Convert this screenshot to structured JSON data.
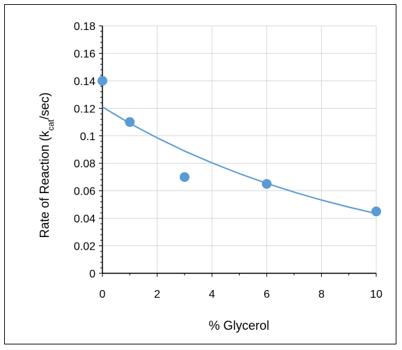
{
  "chart_data": {
    "type": "scatter",
    "title": "",
    "xlabel": "% Glycerol",
    "ylabel": {
      "prefix": "Rate of Reaction (k",
      "subscript": "cat",
      "suffix": "/sec)"
    },
    "xlim": [
      0,
      10
    ],
    "ylim": [
      0,
      0.18
    ],
    "x_ticks": [
      0,
      2,
      4,
      6,
      8,
      10
    ],
    "x_tick_labels": [
      "0",
      "2",
      "4",
      "6",
      "8",
      "10"
    ],
    "y_ticks": [
      0,
      0.02,
      0.04,
      0.06,
      0.08,
      0.1,
      0.12,
      0.14,
      0.16,
      0.18
    ],
    "y_tick_labels": [
      "0",
      "0.02",
      "0.04",
      "0.06",
      "0.08",
      "0.1",
      "0.12",
      "0.14",
      "0.16",
      "0.18"
    ],
    "grid": true,
    "legend": "none",
    "series": [
      {
        "x": [
          0,
          1,
          3,
          6,
          10
        ],
        "y": [
          0.14,
          0.11,
          0.07,
          0.065,
          0.045
        ],
        "color": "#5B9BD5"
      }
    ],
    "trendline": {
      "type": "exponential",
      "x": [
        0,
        1,
        2,
        3,
        4,
        5,
        6,
        7,
        8,
        9,
        10
      ],
      "y": [
        0.121,
        0.109,
        0.0985,
        0.0889,
        0.0803,
        0.0725,
        0.0654,
        0.059,
        0.0533,
        0.0481,
        0.0434
      ],
      "color": "#5B9BD5"
    },
    "gridline_color": "#d9d9d9",
    "axis_color": "#000000"
  }
}
